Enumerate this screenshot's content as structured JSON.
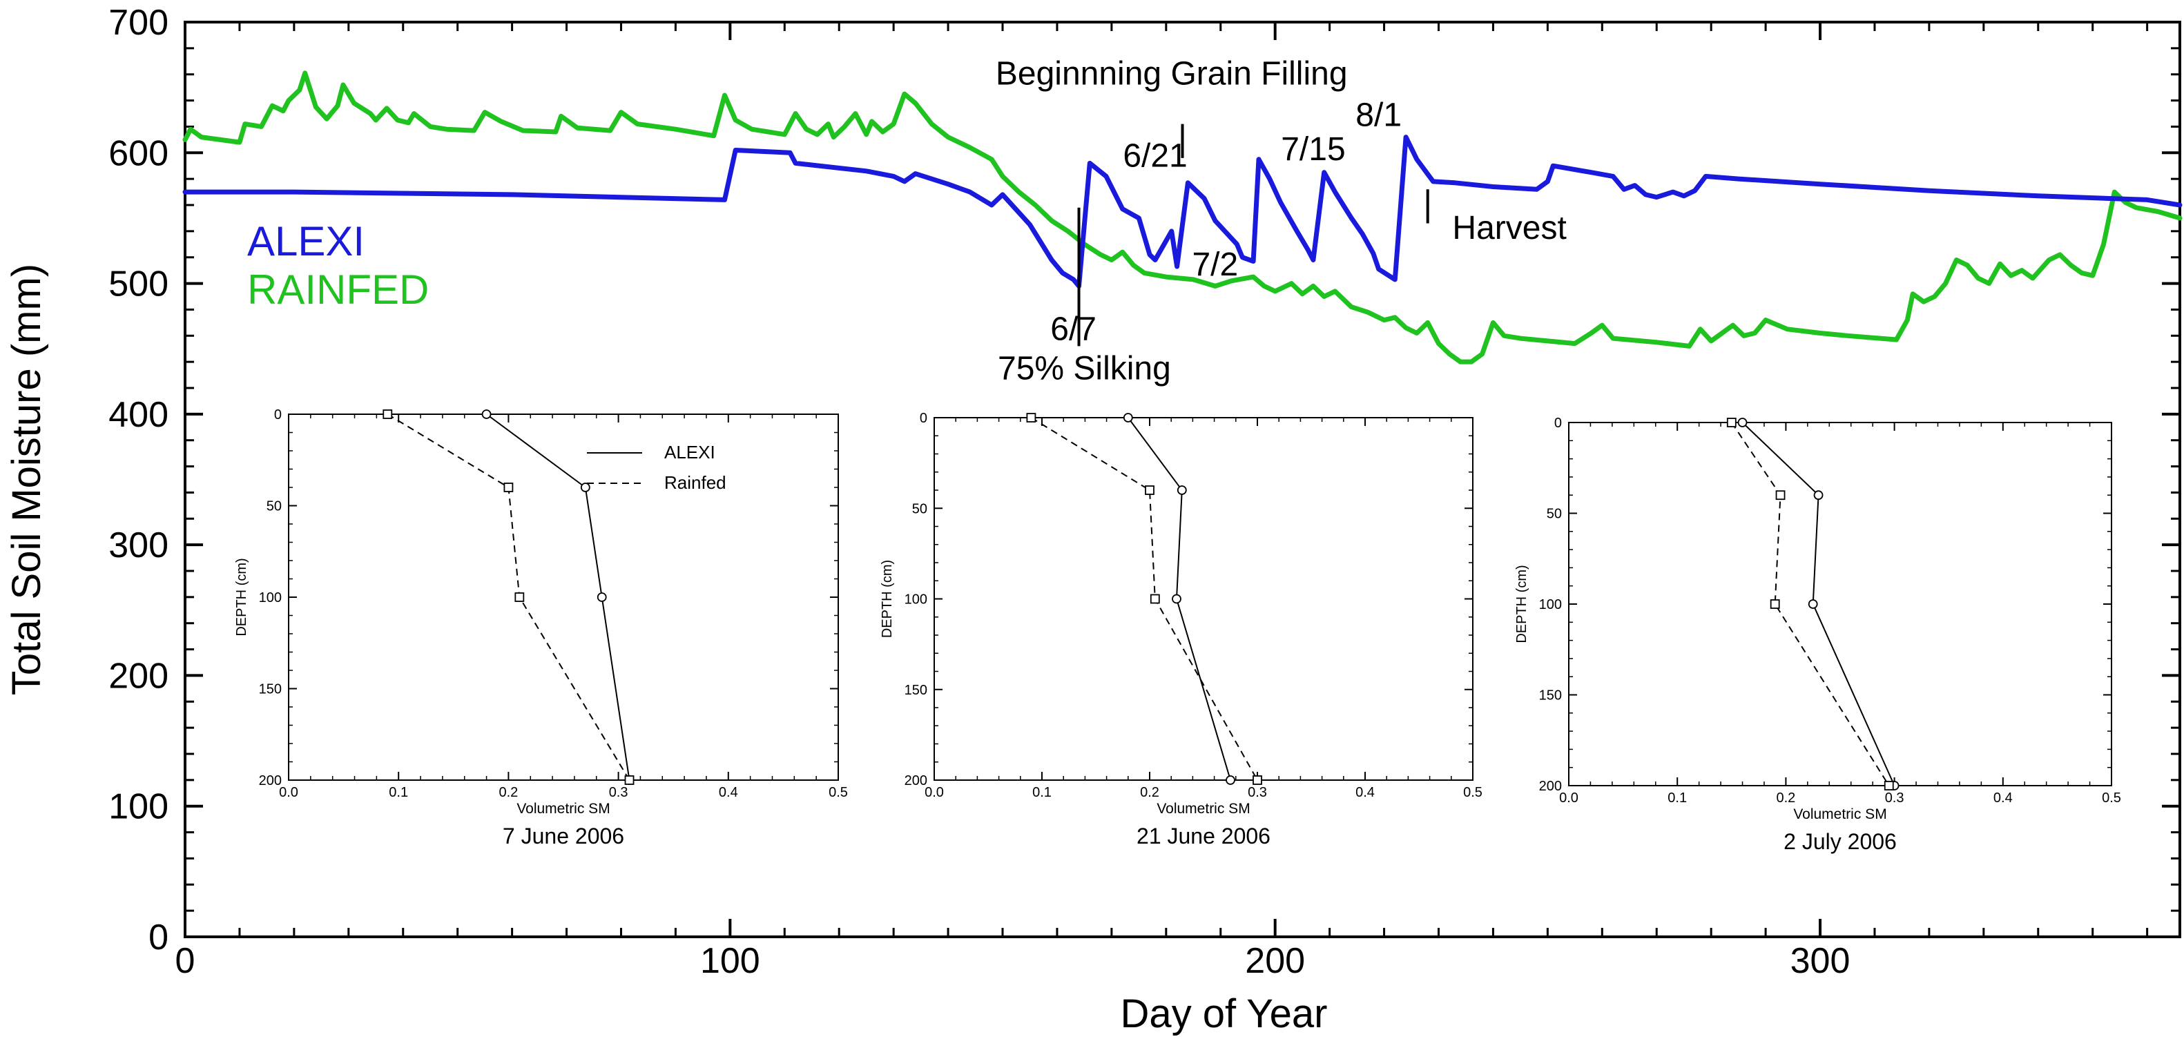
{
  "chart_data": {
    "type": "line",
    "xlabel": "Day of Year",
    "ylabel": "Total Soil Moisture (mm)",
    "xlim": [
      0,
      366
    ],
    "ylim": [
      0,
      700
    ],
    "xticks": [
      0,
      100,
      200,
      300
    ],
    "yticks": [
      0,
      100,
      200,
      300,
      400,
      500,
      600,
      700
    ],
    "legend": [
      {
        "name": "ALEXI",
        "color": "#1a1adc"
      },
      {
        "name": "RAINFED",
        "color": "#1fc21f"
      }
    ],
    "series": [
      {
        "name": "ALEXI",
        "color": "#1a1adc",
        "points": [
          [
            0,
            570
          ],
          [
            20,
            570
          ],
          [
            60,
            568
          ],
          [
            99,
            564
          ],
          [
            101,
            602
          ],
          [
            111,
            600
          ],
          [
            112,
            592
          ],
          [
            125,
            586
          ],
          [
            130,
            582
          ],
          [
            132,
            578
          ],
          [
            134,
            584
          ],
          [
            140,
            576
          ],
          [
            144,
            570
          ],
          [
            148,
            560
          ],
          [
            150,
            568
          ],
          [
            155,
            545
          ],
          [
            159,
            518
          ],
          [
            161,
            508
          ],
          [
            163,
            503
          ],
          [
            164,
            498
          ],
          [
            166,
            592
          ],
          [
            169,
            582
          ],
          [
            172,
            557
          ],
          [
            175,
            550
          ],
          [
            177,
            522
          ],
          [
            178,
            518
          ],
          [
            181,
            540
          ],
          [
            182,
            513
          ],
          [
            184,
            577
          ],
          [
            187,
            565
          ],
          [
            189,
            548
          ],
          [
            193,
            530
          ],
          [
            194,
            520
          ],
          [
            196,
            517
          ],
          [
            197,
            595
          ],
          [
            199,
            580
          ],
          [
            201,
            562
          ],
          [
            204,
            540
          ],
          [
            206,
            526
          ],
          [
            207,
            518
          ],
          [
            209,
            585
          ],
          [
            211,
            570
          ],
          [
            214,
            550
          ],
          [
            216,
            538
          ],
          [
            218,
            523
          ],
          [
            219,
            511
          ],
          [
            222,
            503
          ],
          [
            224,
            612
          ],
          [
            226,
            595
          ],
          [
            229,
            578
          ],
          [
            233,
            577
          ],
          [
            240,
            574
          ],
          [
            248,
            572
          ],
          [
            250,
            578
          ],
          [
            251,
            590
          ],
          [
            258,
            585
          ],
          [
            262,
            582
          ],
          [
            264,
            572
          ],
          [
            266,
            575
          ],
          [
            268,
            568
          ],
          [
            270,
            566
          ],
          [
            273,
            570
          ],
          [
            275,
            567
          ],
          [
            277,
            571
          ],
          [
            279,
            582
          ],
          [
            285,
            580
          ],
          [
            300,
            576
          ],
          [
            320,
            571
          ],
          [
            340,
            567
          ],
          [
            360,
            564
          ],
          [
            366,
            560
          ]
        ]
      },
      {
        "name": "RAINFED",
        "color": "#1fc21f",
        "points": [
          [
            0,
            610
          ],
          [
            1,
            618
          ],
          [
            3,
            612
          ],
          [
            10,
            608
          ],
          [
            11,
            622
          ],
          [
            14,
            620
          ],
          [
            16,
            636
          ],
          [
            18,
            632
          ],
          [
            19,
            640
          ],
          [
            21,
            648
          ],
          [
            22,
            661
          ],
          [
            24,
            635
          ],
          [
            26,
            626
          ],
          [
            28,
            636
          ],
          [
            29,
            652
          ],
          [
            31,
            638
          ],
          [
            34,
            630
          ],
          [
            35,
            625
          ],
          [
            37,
            634
          ],
          [
            39,
            625
          ],
          [
            41,
            623
          ],
          [
            42,
            630
          ],
          [
            45,
            620
          ],
          [
            48,
            618
          ],
          [
            53,
            617
          ],
          [
            55,
            631
          ],
          [
            58,
            624
          ],
          [
            62,
            617
          ],
          [
            68,
            616
          ],
          [
            69,
            628
          ],
          [
            72,
            619
          ],
          [
            78,
            617
          ],
          [
            80,
            631
          ],
          [
            83,
            622
          ],
          [
            90,
            618
          ],
          [
            97,
            613
          ],
          [
            99,
            644
          ],
          [
            101,
            625
          ],
          [
            104,
            618
          ],
          [
            110,
            614
          ],
          [
            112,
            630
          ],
          [
            114,
            618
          ],
          [
            116,
            614
          ],
          [
            118,
            622
          ],
          [
            119,
            612
          ],
          [
            121,
            620
          ],
          [
            123,
            630
          ],
          [
            125,
            614
          ],
          [
            126,
            624
          ],
          [
            128,
            616
          ],
          [
            130,
            622
          ],
          [
            132,
            645
          ],
          [
            134,
            638
          ],
          [
            137,
            622
          ],
          [
            140,
            612
          ],
          [
            144,
            604
          ],
          [
            148,
            595
          ],
          [
            150,
            582
          ],
          [
            153,
            570
          ],
          [
            156,
            560
          ],
          [
            159,
            548
          ],
          [
            162,
            540
          ],
          [
            165,
            530
          ],
          [
            168,
            522
          ],
          [
            170,
            518
          ],
          [
            172,
            524
          ],
          [
            174,
            514
          ],
          [
            176,
            508
          ],
          [
            180,
            505
          ],
          [
            185,
            503
          ],
          [
            189,
            498
          ],
          [
            192,
            502
          ],
          [
            196,
            505
          ],
          [
            198,
            498
          ],
          [
            200,
            494
          ],
          [
            203,
            500
          ],
          [
            205,
            492
          ],
          [
            207,
            498
          ],
          [
            209,
            490
          ],
          [
            211,
            494
          ],
          [
            214,
            482
          ],
          [
            217,
            478
          ],
          [
            220,
            472
          ],
          [
            222,
            474
          ],
          [
            224,
            466
          ],
          [
            226,
            462
          ],
          [
            228,
            470
          ],
          [
            230,
            454
          ],
          [
            232,
            446
          ],
          [
            234,
            440
          ],
          [
            236,
            440
          ],
          [
            238,
            446
          ],
          [
            240,
            470
          ],
          [
            242,
            460
          ],
          [
            245,
            458
          ],
          [
            255,
            454
          ],
          [
            258,
            462
          ],
          [
            260,
            468
          ],
          [
            262,
            458
          ],
          [
            270,
            455
          ],
          [
            276,
            452
          ],
          [
            278,
            465
          ],
          [
            280,
            456
          ],
          [
            282,
            462
          ],
          [
            284,
            468
          ],
          [
            286,
            460
          ],
          [
            288,
            462
          ],
          [
            290,
            472
          ],
          [
            294,
            465
          ],
          [
            300,
            462
          ],
          [
            305,
            460
          ],
          [
            314,
            457
          ],
          [
            316,
            472
          ],
          [
            317,
            492
          ],
          [
            319,
            486
          ],
          [
            321,
            490
          ],
          [
            323,
            500
          ],
          [
            325,
            518
          ],
          [
            327,
            514
          ],
          [
            329,
            504
          ],
          [
            331,
            500
          ],
          [
            333,
            515
          ],
          [
            335,
            506
          ],
          [
            337,
            510
          ],
          [
            339,
            504
          ],
          [
            342,
            518
          ],
          [
            344,
            522
          ],
          [
            346,
            514
          ],
          [
            348,
            508
          ],
          [
            350,
            506
          ],
          [
            352,
            530
          ],
          [
            354,
            570
          ],
          [
            356,
            562
          ],
          [
            358,
            558
          ],
          [
            362,
            555
          ],
          [
            366,
            550
          ]
        ]
      }
    ],
    "annotations": [
      {
        "text": "6/7",
        "x": 163,
        "y": 498,
        "ha": "center",
        "va": "top",
        "dy": 30
      },
      {
        "text": "6/21",
        "x": 178,
        "y": 585,
        "ha": "center",
        "va": "bottom"
      },
      {
        "text": "7/2",
        "x": 189,
        "y": 502,
        "ha": "center",
        "va": "bottom"
      },
      {
        "text": "7/15",
        "x": 207,
        "y": 590,
        "ha": "center",
        "va": "bottom"
      },
      {
        "text": "8/1",
        "x": 219,
        "y": 612,
        "ha": "center",
        "va": "bottom",
        "dy": -8
      },
      {
        "text": "Beginnning Grain Filling",
        "x": 181,
        "y": 648,
        "ha": "center",
        "va": "bottom"
      },
      {
        "text": "75% Silking",
        "x": 165,
        "y": 452,
        "ha": "center",
        "va": "top"
      },
      {
        "text": "Harvest",
        "x": 243,
        "y": 543,
        "ha": "center",
        "va": "middle"
      }
    ],
    "marker_lines": [
      {
        "x": 183,
        "y_from": 622,
        "y_to": 596
      },
      {
        "x": 164,
        "y_from": 558,
        "y_to": 452
      },
      {
        "x": 228,
        "y_from": 572,
        "y_to": 546
      }
    ],
    "insets": [
      {
        "title": "7 June 2006",
        "xlabel": "Volumetric SM",
        "ylabel": "DEPTH (cm)",
        "xlim": [
          0.0,
          0.5
        ],
        "ylim": [
          0,
          200
        ],
        "xticks": [
          "0.0",
          "0.1",
          "0.2",
          "0.3",
          "0.4",
          "0.5"
        ],
        "yticks": [
          "0",
          "50",
          "100",
          "150",
          "200"
        ],
        "show_legend": true,
        "legend": [
          {
            "name": "ALEXI",
            "style": "solid"
          },
          {
            "name": "Rainfed",
            "style": "dashed"
          }
        ],
        "series": [
          {
            "name": "ALEXI",
            "style": "solid",
            "marker": "circle",
            "depths": [
              0,
              40,
              100,
              200
            ],
            "values": [
              0.18,
              0.27,
              0.285,
              0.31
            ]
          },
          {
            "name": "Rainfed",
            "style": "dashed",
            "marker": "square",
            "depths": [
              0,
              40,
              100,
              200
            ],
            "values": [
              0.09,
              0.2,
              0.21,
              0.31
            ]
          }
        ]
      },
      {
        "title": "21 June 2006",
        "xlabel": "Volumetric SM",
        "ylabel": "DEPTH (cm)",
        "xlim": [
          0.0,
          0.5
        ],
        "ylim": [
          0,
          200
        ],
        "xticks": [
          "0.0",
          "0.1",
          "0.2",
          "0.3",
          "0.4",
          "0.5"
        ],
        "yticks": [
          "0",
          "50",
          "100",
          "150",
          "200"
        ],
        "show_legend": false,
        "series": [
          {
            "name": "ALEXI",
            "style": "solid",
            "marker": "circle",
            "depths": [
              0,
              40,
              100,
              200
            ],
            "values": [
              0.18,
              0.23,
              0.225,
              0.275
            ]
          },
          {
            "name": "Rainfed",
            "style": "dashed",
            "marker": "square",
            "depths": [
              0,
              40,
              100,
              200
            ],
            "values": [
              0.09,
              0.2,
              0.205,
              0.3
            ]
          }
        ]
      },
      {
        "title": "2 July 2006",
        "xlabel": "Volumetric SM",
        "ylabel": "DEPTH (cm)",
        "xlim": [
          0.0,
          0.5
        ],
        "ylim": [
          0,
          200
        ],
        "xticks": [
          "0.0",
          "0.1",
          "0.2",
          "0.3",
          "0.4",
          "0.5"
        ],
        "yticks": [
          "0",
          "50",
          "100",
          "150",
          "200"
        ],
        "show_legend": false,
        "series": [
          {
            "name": "ALEXI",
            "style": "solid",
            "marker": "circle",
            "depths": [
              0,
              40,
              100,
              200
            ],
            "values": [
              0.16,
              0.23,
              0.225,
              0.3
            ]
          },
          {
            "name": "Rainfed",
            "style": "dashed",
            "marker": "square",
            "depths": [
              0,
              40,
              100,
              200
            ],
            "values": [
              0.15,
              0.195,
              0.19,
              0.295
            ]
          }
        ]
      }
    ]
  }
}
